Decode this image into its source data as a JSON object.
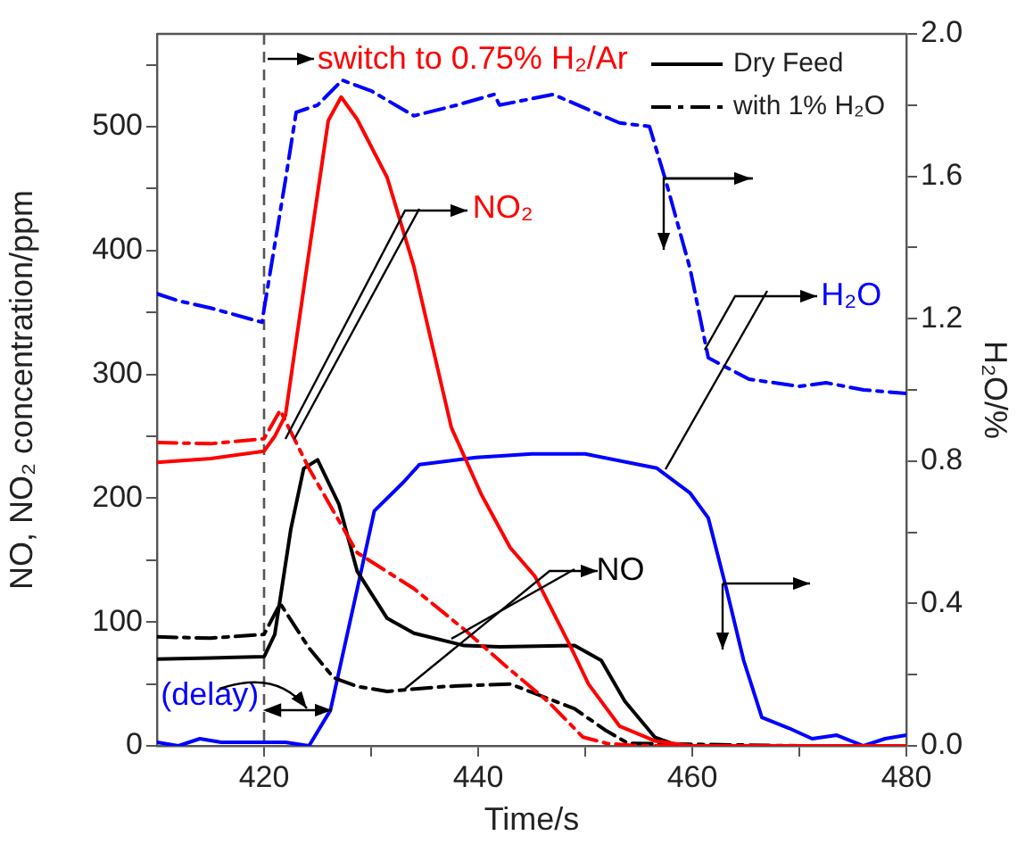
{
  "chart_data": {
    "type": "line",
    "xlabel": "Time/s",
    "ylabel": "NO, NO₂ concentration/ppm",
    "y2label": "H₂O/%",
    "xlim": [
      410,
      480
    ],
    "xticks": [
      420,
      {
        "value": 430,
        "label": null
      },
      440,
      {
        "value": 450,
        "label": null
      },
      460,
      {
        "value": 470,
        "label": null
      },
      480
    ],
    "ylim": [
      0,
      575
    ],
    "yticks": [
      0,
      {
        "value": 50,
        "label": null
      },
      100,
      {
        "value": 150,
        "label": null
      },
      200,
      {
        "value": 250,
        "label": null
      },
      300,
      {
        "value": 350,
        "label": null
      },
      400,
      {
        "value": 450,
        "label": null
      },
      500,
      {
        "value": 550,
        "label": null
      }
    ],
    "y2lim": [
      0,
      2.0
    ],
    "y2ticks": [
      {
        "value": 0,
        "label": "0.0"
      },
      {
        "value": 0.2,
        "label": null
      },
      0.4,
      {
        "value": 0.6,
        "label": null
      },
      0.8,
      {
        "value": 1.0,
        "label": null
      },
      1.2,
      {
        "value": 1.4,
        "label": null
      },
      1.6,
      {
        "value": 1.8,
        "label": null
      },
      {
        "value": 2.0,
        "label": "2.0"
      }
    ],
    "grid": false,
    "legend": "top right",
    "marker": "none",
    "series": [
      {
        "color": "#ff0000",
        "line_style": "solid",
        "x": [
          410,
          415,
          420,
          421,
          422,
          424,
          426,
          427.2,
          428.7,
          431.5,
          434,
          437.5,
          440.3,
          443,
          445.3,
          448.7,
          450.3,
          453.2,
          456.5,
          460,
          470,
          480
        ],
        "values": [
          229,
          232,
          238,
          250,
          267,
          387,
          505,
          524,
          506,
          459,
          387,
          257,
          203,
          160,
          137,
          79,
          50,
          16,
          4,
          0,
          0,
          0
        ]
      },
      {
        "color": "#ff0000",
        "line_style": "dashdot",
        "x": [
          410,
          415,
          420,
          421.5,
          424.2,
          428.7,
          434,
          438.7,
          442.5,
          446.5,
          449.8,
          452,
          455,
          470,
          480
        ],
        "values": [
          245,
          244,
          248,
          271,
          224,
          156,
          127,
          94,
          65,
          36,
          7,
          2,
          0,
          0,
          0
        ]
      },
      {
        "name": "Dry Feed",
        "color": "#000000",
        "line_style": "solid",
        "x": [
          410,
          415,
          420,
          421,
          422.5,
          423.7,
          425,
          427,
          428.7,
          431.5,
          434,
          438.7,
          442,
          449,
          451.5,
          453.7,
          456.5,
          458.7,
          470,
          480
        ],
        "values": [
          70,
          71,
          72,
          90,
          175,
          224,
          231,
          195,
          141,
          103,
          91,
          81,
          80,
          81,
          69,
          36,
          7,
          0,
          0,
          0
        ]
      },
      {
        "name": "with 1% H₂O",
        "color": "#000000",
        "line_style": "dashdot",
        "x": [
          410,
          415,
          420,
          421.5,
          424.2,
          426.5,
          428.7,
          431.5,
          437,
          443,
          449,
          452,
          454,
          470,
          480
        ],
        "values": [
          88,
          87,
          90,
          115,
          79,
          55,
          48,
          44,
          48,
          50,
          30,
          12,
          2,
          0,
          0
        ]
      },
      {
        "color": "#0000ff",
        "line_style": "solid",
        "axis": "y2",
        "x": [
          410,
          412,
          414,
          416,
          418,
          420,
          422,
          424.2,
          426.2,
          428.7,
          430.3,
          433,
          434.5,
          439.8,
          445,
          450,
          456.7,
          459.8,
          461.5,
          463.2,
          464.8,
          466.5,
          469,
          471.2,
          473.5,
          476,
          478,
          480
        ],
        "values": [
          0.01,
          0.0,
          0.02,
          0.01,
          0.01,
          0.01,
          0.01,
          0.0,
          0.1,
          0.44,
          0.66,
          0.74,
          0.79,
          0.81,
          0.82,
          0.82,
          0.78,
          0.71,
          0.64,
          0.44,
          0.24,
          0.08,
          0.05,
          0.02,
          0.03,
          0.0,
          0.02,
          0.03
        ]
      },
      {
        "color": "#0000ff",
        "line_style": "dashdot",
        "axis": "y2",
        "x": [
          410,
          412,
          415,
          419.8,
          422,
          423,
          425,
          427.3,
          430,
          434,
          438,
          441.5,
          442,
          447,
          453.2,
          456,
          457.5,
          459.8,
          461.5,
          465.3,
          470,
          472.5,
          476,
          480
        ],
        "values": [
          1.27,
          1.25,
          1.23,
          1.19,
          1.59,
          1.78,
          1.8,
          1.87,
          1.84,
          1.77,
          1.8,
          1.83,
          1.8,
          1.83,
          1.75,
          1.74,
          1.59,
          1.34,
          1.09,
          1.03,
          1.01,
          1.02,
          1.0,
          0.99
        ]
      }
    ],
    "ref_lines": [
      {
        "axis": "x",
        "value": 420,
        "color": "#555555",
        "line_style": "dashed"
      }
    ],
    "annotations": [
      "switch to 0.75% H₂/Ar",
      "NO₂",
      {
        "text": "NO",
        "x": 438.7,
        "y": 81
      },
      "H₂O",
      "(delay)"
    ]
  }
}
